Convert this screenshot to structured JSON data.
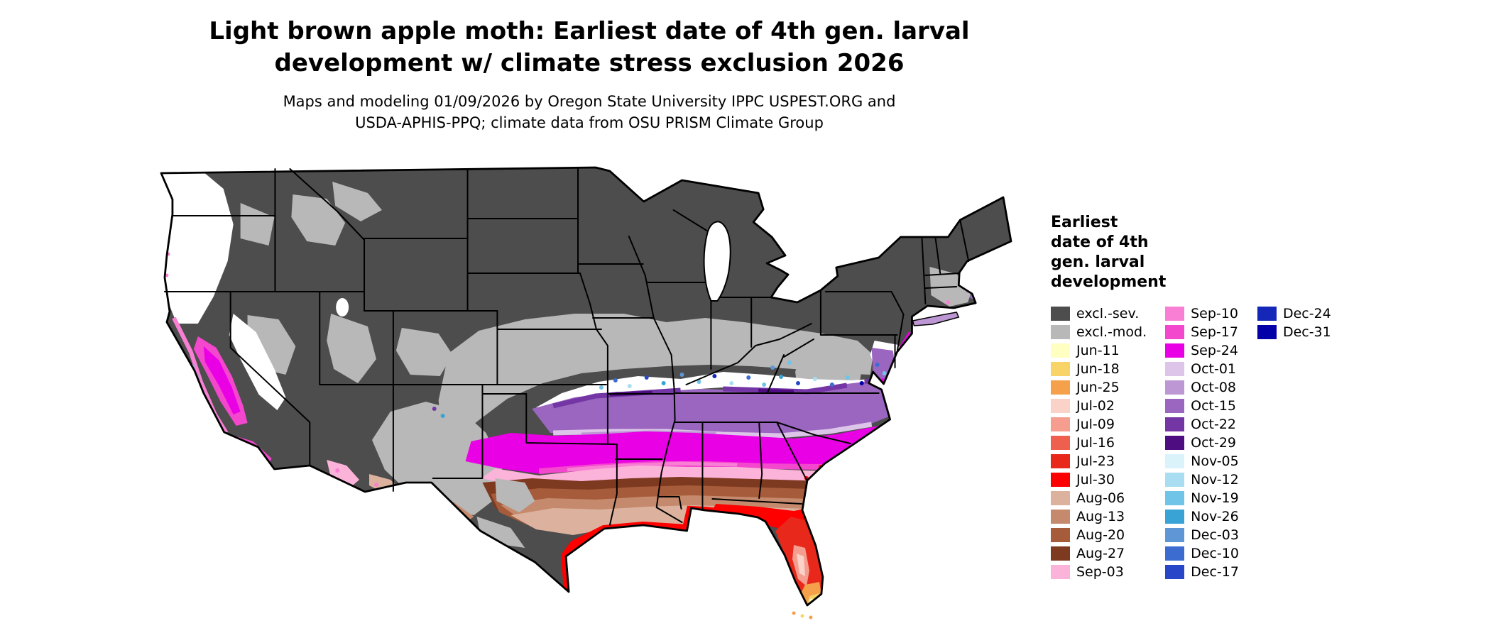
{
  "header": {
    "title_line1": "Light brown apple moth: Earliest date of 4th gen. larval",
    "title_line2": "development w/ climate stress exclusion 2026",
    "subtitle_line1": "Maps and modeling 01/09/2026 by Oregon State University IPPC USPEST.ORG and",
    "subtitle_line2": "USDA-APHIS-PPQ; climate data from OSU PRISM Climate Group"
  },
  "legend": {
    "title_lines": [
      "Earliest",
      "date of 4th",
      "gen. larval",
      "development"
    ],
    "columns": [
      {
        "items": [
          {
            "key": "excl-sev",
            "label": "excl.-sev.",
            "color": "#4d4d4d"
          },
          {
            "key": "excl-mod",
            "label": "excl.-mod.",
            "color": "#b8b8b8"
          },
          {
            "key": "jun11",
            "label": "Jun-11",
            "color": "#ffffc2"
          },
          {
            "key": "jun18",
            "label": "Jun-18",
            "color": "#f7d368"
          },
          {
            "key": "jun25",
            "label": "Jun-25",
            "color": "#f5a04a"
          },
          {
            "key": "jul02",
            "label": "Jul-02",
            "color": "#fbd2c8"
          },
          {
            "key": "jul09",
            "label": "Jul-09",
            "color": "#f59e90"
          },
          {
            "key": "jul16",
            "label": "Jul-16",
            "color": "#ee5f4d"
          },
          {
            "key": "jul23",
            "label": "Jul-23",
            "color": "#e8281b"
          },
          {
            "key": "jul30",
            "label": "Jul-30",
            "color": "#fe0000"
          },
          {
            "key": "aug06",
            "label": "Aug-06",
            "color": "#dcb29e"
          },
          {
            "key": "aug13",
            "label": "Aug-13",
            "color": "#c58a6d"
          },
          {
            "key": "aug20",
            "label": "Aug-20",
            "color": "#a65c3b"
          },
          {
            "key": "aug27",
            "label": "Aug-27",
            "color": "#7e3a20"
          },
          {
            "key": "sep03",
            "label": "Sep-03",
            "color": "#fcb3d9"
          }
        ]
      },
      {
        "items": [
          {
            "key": "sep10",
            "label": "Sep-10",
            "color": "#f97fd4"
          },
          {
            "key": "sep17",
            "label": "Sep-17",
            "color": "#f347cd"
          },
          {
            "key": "sep24",
            "label": "Sep-24",
            "color": "#ea00e4"
          },
          {
            "key": "oct01",
            "label": "Oct-01",
            "color": "#dcc5e8"
          },
          {
            "key": "oct08",
            "label": "Oct-08",
            "color": "#bd97d4"
          },
          {
            "key": "oct15",
            "label": "Oct-15",
            "color": "#9a66bf"
          },
          {
            "key": "oct22",
            "label": "Oct-22",
            "color": "#7536a5"
          },
          {
            "key": "oct29",
            "label": "Oct-29",
            "color": "#4f0d82"
          },
          {
            "key": "nov05",
            "label": "Nov-05",
            "color": "#daf3fb"
          },
          {
            "key": "nov12",
            "label": "Nov-12",
            "color": "#a9def2"
          },
          {
            "key": "nov19",
            "label": "Nov-19",
            "color": "#6fc4e7"
          },
          {
            "key": "nov26",
            "label": "Nov-26",
            "color": "#39a3d6"
          },
          {
            "key": "dec03",
            "label": "Dec-03",
            "color": "#5e96d6"
          },
          {
            "key": "dec10",
            "label": "Dec-10",
            "color": "#3d6cd0"
          },
          {
            "key": "dec17",
            "label": "Dec-17",
            "color": "#2847c8"
          }
        ]
      },
      {
        "items": [
          {
            "key": "dec24",
            "label": "Dec-24",
            "color": "#1527b8"
          },
          {
            "key": "dec31",
            "label": "Dec-31",
            "color": "#0400a8"
          }
        ]
      }
    ]
  }
}
